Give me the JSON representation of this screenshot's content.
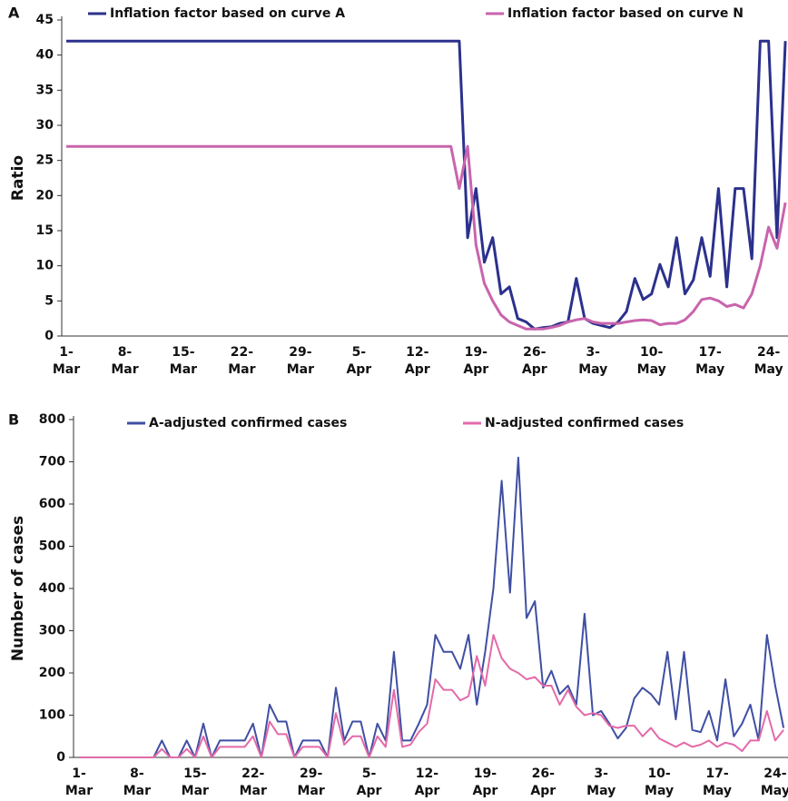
{
  "chart_data": [
    {
      "type": "line",
      "panel_label": "A",
      "y_label": "Ratio",
      "categories": [
        "1-Mar",
        null,
        null,
        null,
        null,
        null,
        null,
        "8-Mar",
        null,
        null,
        null,
        null,
        null,
        null,
        "15-Mar",
        null,
        null,
        null,
        null,
        null,
        null,
        "22-Mar",
        null,
        null,
        null,
        null,
        null,
        null,
        "29-Mar",
        null,
        null,
        null,
        null,
        null,
        null,
        "5-Apr",
        null,
        null,
        null,
        null,
        null,
        null,
        "12-Apr",
        null,
        null,
        null,
        null,
        null,
        null,
        "19-Apr",
        null,
        null,
        null,
        null,
        null,
        null,
        "26-Apr",
        null,
        null,
        null,
        null,
        null,
        null,
        "3-May",
        null,
        null,
        null,
        null,
        null,
        null,
        "10-May",
        null,
        null,
        null,
        null,
        null,
        null,
        "17-May",
        null,
        null,
        null,
        null,
        null,
        null,
        "24-May",
        null,
        null
      ],
      "series": [
        {
          "name": "Inflation factor based on curve A",
          "color": "#2b318c",
          "values": [
            42,
            42,
            42,
            42,
            42,
            42,
            42,
            42,
            42,
            42,
            42,
            42,
            42,
            42,
            42,
            42,
            42,
            42,
            42,
            42,
            42,
            42,
            42,
            42,
            42,
            42,
            42,
            42,
            42,
            42,
            42,
            42,
            42,
            42,
            42,
            42,
            42,
            42,
            42,
            42,
            42,
            42,
            42,
            42,
            42,
            42,
            42,
            42,
            14,
            21,
            10.5,
            14,
            6,
            7,
            2.5,
            2,
            1,
            1.2,
            1.3,
            1.8,
            2,
            8.2,
            2.5,
            1.8,
            1.5,
            1.2,
            2,
            3.5,
            8.2,
            5.2,
            6,
            10.2,
            7,
            14,
            6,
            8,
            14,
            8.5,
            21,
            7,
            21,
            21,
            11,
            42,
            42,
            14,
            42
          ]
        },
        {
          "name": "Inflation factor based on curve N",
          "color": "#c964ad",
          "values": [
            27,
            27,
            27,
            27,
            27,
            27,
            27,
            27,
            27,
            27,
            27,
            27,
            27,
            27,
            27,
            27,
            27,
            27,
            27,
            27,
            27,
            27,
            27,
            27,
            27,
            27,
            27,
            27,
            27,
            27,
            27,
            27,
            27,
            27,
            27,
            27,
            27,
            27,
            27,
            27,
            27,
            27,
            27,
            27,
            27,
            27,
            27,
            21,
            27,
            13,
            7.5,
            5,
            3,
            2,
            1.5,
            1,
            1,
            1,
            1.2,
            1.5,
            2,
            2.3,
            2.5,
            2,
            1.8,
            1.8,
            1.8,
            2,
            2.2,
            2.3,
            2.2,
            1.6,
            1.8,
            1.8,
            2.3,
            3.5,
            5.2,
            5.4,
            5,
            4.2,
            4.5,
            4,
            6,
            10,
            15.5,
            12.5,
            19
          ]
        }
      ],
      "ylim": [
        0,
        45
      ],
      "yticks": [
        0,
        5,
        10,
        15,
        20,
        25,
        30,
        35,
        40,
        45
      ]
    },
    {
      "type": "line",
      "panel_label": "B",
      "y_label": "Number of cases",
      "categories": [
        "1-Mar",
        null,
        null,
        null,
        null,
        null,
        null,
        "8-Mar",
        null,
        null,
        null,
        null,
        null,
        null,
        "15-Mar",
        null,
        null,
        null,
        null,
        null,
        null,
        "22-Mar",
        null,
        null,
        null,
        null,
        null,
        null,
        "29-Mar",
        null,
        null,
        null,
        null,
        null,
        null,
        "5-Apr",
        null,
        null,
        null,
        null,
        null,
        null,
        "12-Apr",
        null,
        null,
        null,
        null,
        null,
        null,
        "19-Apr",
        null,
        null,
        null,
        null,
        null,
        null,
        "26-Apr",
        null,
        null,
        null,
        null,
        null,
        null,
        "3-May",
        null,
        null,
        null,
        null,
        null,
        null,
        "10-May",
        null,
        null,
        null,
        null,
        null,
        null,
        "17-May",
        null,
        null,
        null,
        null,
        null,
        null,
        "24-May",
        null
      ],
      "series": [
        {
          "name": "A-adjusted confirmed cases",
          "color": "#3f4fa3",
          "values": [
            0,
            0,
            0,
            0,
            0,
            0,
            0,
            0,
            0,
            0,
            40,
            0,
            0,
            40,
            0,
            80,
            0,
            40,
            40,
            40,
            40,
            80,
            0,
            125,
            85,
            85,
            0,
            40,
            40,
            40,
            0,
            165,
            40,
            85,
            85,
            0,
            80,
            40,
            250,
            40,
            40,
            80,
            125,
            290,
            250,
            250,
            210,
            290,
            125,
            250,
            400,
            655,
            390,
            710,
            330,
            370,
            165,
            205,
            150,
            170,
            125,
            340,
            100,
            110,
            80,
            45,
            70,
            140,
            165,
            150,
            125,
            250,
            90,
            250,
            65,
            60,
            110,
            40,
            185,
            50,
            80,
            125,
            40,
            290,
            170,
            70
          ]
        },
        {
          "name": "N-adjusted confirmed cases",
          "color": "#e36aa8",
          "values": [
            0,
            0,
            0,
            0,
            0,
            0,
            0,
            0,
            0,
            0,
            20,
            0,
            0,
            20,
            0,
            50,
            0,
            25,
            25,
            25,
            25,
            50,
            0,
            85,
            55,
            55,
            0,
            25,
            25,
            25,
            0,
            105,
            30,
            50,
            50,
            0,
            50,
            25,
            160,
            25,
            30,
            60,
            80,
            185,
            160,
            160,
            135,
            145,
            240,
            170,
            290,
            235,
            210,
            200,
            185,
            190,
            170,
            170,
            125,
            160,
            120,
            100,
            105,
            100,
            75,
            70,
            75,
            75,
            50,
            70,
            45,
            35,
            25,
            35,
            25,
            30,
            40,
            25,
            35,
            30,
            15,
            40,
            40,
            110,
            40,
            65
          ]
        }
      ],
      "ylim": [
        0,
        800
      ],
      "yticks": [
        0,
        100,
        200,
        300,
        400,
        500,
        600,
        700,
        800
      ]
    }
  ]
}
